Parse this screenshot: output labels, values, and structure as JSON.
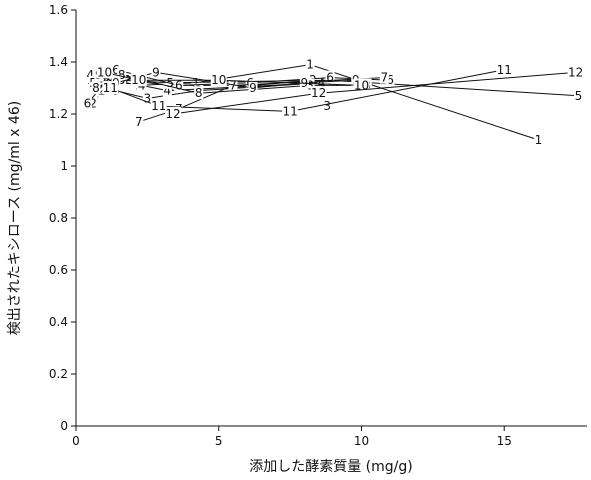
{
  "chart_data": {
    "type": "line",
    "xlabel": "添加した酵素質量 (mg/g)",
    "ylabel": "検出されたキシロース (mg/ml x 46)",
    "xlim": [
      0,
      17.9
    ],
    "ylim": [
      0,
      1.6
    ],
    "xticks": [
      0,
      5,
      10,
      15
    ],
    "yticks": [
      0,
      0.2,
      0.4,
      0.6,
      0.8,
      1,
      1.2,
      1.4,
      1.6
    ],
    "xtick_labels": [
      "0",
      "5",
      "10",
      "15"
    ],
    "ytick_labels": [
      "0",
      "0.2",
      "0.4",
      "0.6",
      "0.8",
      "1",
      "1.2",
      "1.4",
      "1.6"
    ],
    "grid": false,
    "series": [
      {
        "marker": "1",
        "points": [
          [
            0.5,
            1.33
          ],
          [
            1.0,
            1.34
          ],
          [
            2.2,
            1.31
          ],
          [
            4.2,
            1.32
          ],
          [
            8.2,
            1.39
          ],
          [
            16.2,
            1.1
          ]
        ]
      },
      {
        "marker": "2",
        "points": [
          [
            0.6,
            1.24
          ],
          [
            0.9,
            1.29
          ],
          [
            1.8,
            1.33
          ],
          [
            3.3,
            1.31
          ],
          [
            6.2,
            1.31
          ],
          [
            8.3,
            1.33
          ]
        ]
      },
      {
        "marker": "3",
        "points": [
          [
            1.4,
            1.29
          ],
          [
            2.5,
            1.26
          ],
          [
            4.3,
            1.29
          ],
          [
            8.6,
            1.32
          ],
          [
            8.8,
            1.23
          ]
        ]
      },
      {
        "marker": "4",
        "points": [
          [
            0.5,
            1.35
          ],
          [
            1.2,
            1.33
          ],
          [
            2.3,
            1.31
          ],
          [
            3.2,
            1.29
          ],
          [
            8.6,
            1.32
          ]
        ]
      },
      {
        "marker": "5",
        "points": [
          [
            0.6,
            1.32
          ],
          [
            1.6,
            1.33
          ],
          [
            3.3,
            1.32
          ],
          [
            8.9,
            1.33
          ],
          [
            17.6,
            1.27
          ]
        ]
      },
      {
        "marker": "6",
        "points": [
          [
            0.4,
            1.24
          ],
          [
            1.4,
            1.37
          ],
          [
            3.6,
            1.31
          ],
          [
            6.1,
            1.32
          ],
          [
            8.9,
            1.34
          ],
          [
            11.0,
            1.33
          ]
        ]
      },
      {
        "marker": "7",
        "points": [
          [
            2.2,
            1.17
          ],
          [
            3.6,
            1.22
          ],
          [
            5.5,
            1.31
          ],
          [
            10.8,
            1.34
          ]
        ]
      },
      {
        "marker": "8",
        "points": [
          [
            0.7,
            1.3
          ],
          [
            1.6,
            1.35
          ],
          [
            4.3,
            1.28
          ],
          [
            8.2,
            1.31
          ],
          [
            10.2,
            1.31
          ]
        ]
      },
      {
        "marker": "9",
        "points": [
          [
            0.8,
            1.35
          ],
          [
            1.4,
            1.32
          ],
          [
            2.8,
            1.36
          ],
          [
            6.2,
            1.3
          ],
          [
            8.0,
            1.32
          ],
          [
            9.8,
            1.33
          ]
        ]
      },
      {
        "marker": "10",
        "points": [
          [
            1.0,
            1.36
          ],
          [
            2.2,
            1.33
          ],
          [
            5.0,
            1.33
          ],
          [
            10.0,
            1.31
          ]
        ]
      },
      {
        "marker": "11",
        "points": [
          [
            1.2,
            1.3
          ],
          [
            2.9,
            1.23
          ],
          [
            7.5,
            1.21
          ],
          [
            15.0,
            1.37
          ]
        ]
      },
      {
        "marker": "12",
        "points": [
          [
            3.4,
            1.2
          ],
          [
            8.5,
            1.28
          ],
          [
            17.5,
            1.36
          ]
        ]
      }
    ]
  }
}
